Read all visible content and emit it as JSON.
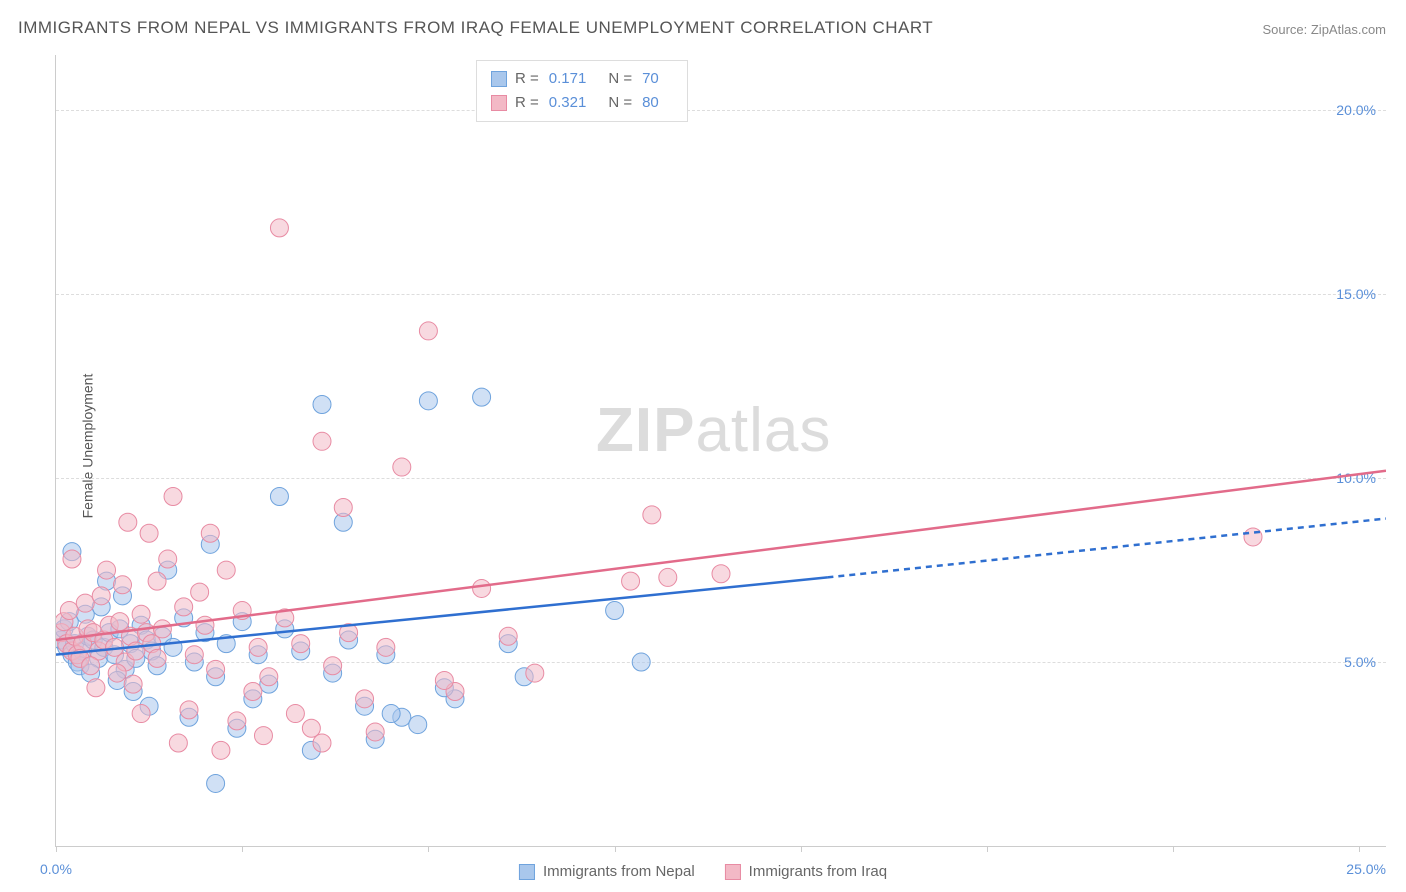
{
  "title": "IMMIGRANTS FROM NEPAL VS IMMIGRANTS FROM IRAQ FEMALE UNEMPLOYMENT CORRELATION CHART",
  "source_label": "Source: ZipAtlas.com",
  "y_axis_label": "Female Unemployment",
  "watermark": {
    "bold": "ZIP",
    "rest": "atlas"
  },
  "chart": {
    "type": "scatter",
    "background_color": "#ffffff",
    "grid_color": "#dddddd",
    "axis_color": "#cccccc",
    "tick_label_color": "#5a8fd8",
    "text_color": "#555555",
    "xlim": [
      0,
      25
    ],
    "ylim": [
      0,
      21.5
    ],
    "y_ticks": [
      {
        "value": 5,
        "label": "5.0%"
      },
      {
        "value": 10,
        "label": "10.0%"
      },
      {
        "value": 15,
        "label": "15.0%"
      },
      {
        "value": 20,
        "label": "20.0%"
      }
    ],
    "x_tick_positions": [
      0,
      3.5,
      7,
      10.5,
      14,
      17.5,
      21,
      24.5
    ],
    "x_origin_label": "0.0%",
    "x_max_label": "25.0%",
    "marker_radius": 9,
    "marker_opacity": 0.55,
    "series": [
      {
        "name": "Immigrants from Nepal",
        "color_fill": "#a9c7ec",
        "color_stroke": "#6fa3dd",
        "line_color": "#2f6fd0",
        "line_width": 2.5,
        "R": "0.171",
        "N": "70",
        "trend": {
          "x1": 0,
          "y1": 5.2,
          "x2": 14.5,
          "y2": 7.3,
          "x2_ext": 25,
          "y2_ext": 8.9,
          "dashed_after": 14.5
        },
        "points": [
          [
            0.1,
            5.6
          ],
          [
            0.2,
            5.4
          ],
          [
            0.15,
            5.9
          ],
          [
            0.3,
            5.2
          ],
          [
            0.35,
            5.5
          ],
          [
            0.4,
            5.0
          ],
          [
            0.25,
            6.1
          ],
          [
            0.5,
            5.3
          ],
          [
            0.6,
            5.7
          ],
          [
            0.45,
            4.9
          ],
          [
            0.7,
            5.6
          ],
          [
            0.8,
            5.1
          ],
          [
            0.55,
            6.3
          ],
          [
            0.9,
            5.4
          ],
          [
            0.65,
            4.7
          ],
          [
            1.0,
            5.8
          ],
          [
            0.3,
            8.0
          ],
          [
            1.1,
            5.2
          ],
          [
            1.2,
            5.9
          ],
          [
            0.85,
            6.5
          ],
          [
            1.3,
            4.8
          ],
          [
            1.4,
            5.5
          ],
          [
            0.95,
            7.2
          ],
          [
            1.5,
            5.1
          ],
          [
            1.6,
            6.0
          ],
          [
            1.15,
            4.5
          ],
          [
            1.7,
            5.6
          ],
          [
            1.8,
            5.3
          ],
          [
            1.25,
            6.8
          ],
          [
            1.9,
            4.9
          ],
          [
            2.0,
            5.7
          ],
          [
            1.45,
            4.2
          ],
          [
            2.2,
            5.4
          ],
          [
            2.4,
            6.2
          ],
          [
            1.75,
            3.8
          ],
          [
            2.6,
            5.0
          ],
          [
            2.8,
            5.8
          ],
          [
            2.1,
            7.5
          ],
          [
            3.0,
            4.6
          ],
          [
            3.2,
            5.5
          ],
          [
            2.5,
            3.5
          ],
          [
            3.5,
            6.1
          ],
          [
            3.8,
            5.2
          ],
          [
            2.9,
            8.2
          ],
          [
            4.0,
            4.4
          ],
          [
            4.3,
            5.9
          ],
          [
            3.4,
            3.2
          ],
          [
            4.6,
            5.3
          ],
          [
            5.0,
            12.0
          ],
          [
            3.7,
            4.0
          ],
          [
            5.2,
            4.7
          ],
          [
            5.5,
            5.6
          ],
          [
            4.2,
            9.5
          ],
          [
            5.8,
            3.8
          ],
          [
            6.2,
            5.2
          ],
          [
            4.8,
            2.6
          ],
          [
            6.5,
            3.5
          ],
          [
            7.0,
            12.1
          ],
          [
            5.4,
            8.8
          ],
          [
            7.5,
            4.0
          ],
          [
            8.0,
            12.2
          ],
          [
            6.0,
            2.9
          ],
          [
            8.5,
            5.5
          ],
          [
            7.3,
            4.3
          ],
          [
            3.0,
            1.7
          ],
          [
            10.5,
            6.4
          ],
          [
            6.8,
            3.3
          ],
          [
            11.0,
            5.0
          ],
          [
            6.3,
            3.6
          ],
          [
            8.8,
            4.6
          ]
        ]
      },
      {
        "name": "Immigrants from Iraq",
        "color_fill": "#f3b9c6",
        "color_stroke": "#e88ba3",
        "line_color": "#e26b8a",
        "line_width": 2.5,
        "R": "0.321",
        "N": "80",
        "trend": {
          "x1": 0,
          "y1": 5.6,
          "x2": 25,
          "y2": 10.2
        },
        "points": [
          [
            0.1,
            5.8
          ],
          [
            0.2,
            5.5
          ],
          [
            0.15,
            6.1
          ],
          [
            0.3,
            5.3
          ],
          [
            0.35,
            5.7
          ],
          [
            0.4,
            5.2
          ],
          [
            0.25,
            6.4
          ],
          [
            0.5,
            5.5
          ],
          [
            0.6,
            5.9
          ],
          [
            0.45,
            5.1
          ],
          [
            0.7,
            5.8
          ],
          [
            0.8,
            5.3
          ],
          [
            0.55,
            6.6
          ],
          [
            0.9,
            5.6
          ],
          [
            0.65,
            4.9
          ],
          [
            1.0,
            6.0
          ],
          [
            0.3,
            7.8
          ],
          [
            1.1,
            5.4
          ],
          [
            1.2,
            6.1
          ],
          [
            0.85,
            6.8
          ],
          [
            1.3,
            5.0
          ],
          [
            1.4,
            5.7
          ],
          [
            0.95,
            7.5
          ],
          [
            1.5,
            5.3
          ],
          [
            1.6,
            6.3
          ],
          [
            1.15,
            4.7
          ],
          [
            1.7,
            5.8
          ],
          [
            1.8,
            5.5
          ],
          [
            1.25,
            7.1
          ],
          [
            1.9,
            5.1
          ],
          [
            2.0,
            5.9
          ],
          [
            1.45,
            4.4
          ],
          [
            2.2,
            9.5
          ],
          [
            2.4,
            6.5
          ],
          [
            1.75,
            8.5
          ],
          [
            2.6,
            5.2
          ],
          [
            2.8,
            6.0
          ],
          [
            2.1,
            7.8
          ],
          [
            3.0,
            4.8
          ],
          [
            3.2,
            7.5
          ],
          [
            2.5,
            3.7
          ],
          [
            3.5,
            6.4
          ],
          [
            3.8,
            5.4
          ],
          [
            2.9,
            8.5
          ],
          [
            4.0,
            4.6
          ],
          [
            4.3,
            6.2
          ],
          [
            3.4,
            3.4
          ],
          [
            4.6,
            5.5
          ],
          [
            5.0,
            11.0
          ],
          [
            3.7,
            4.2
          ],
          [
            5.2,
            4.9
          ],
          [
            5.5,
            5.8
          ],
          [
            4.2,
            16.8
          ],
          [
            5.8,
            4.0
          ],
          [
            6.2,
            5.4
          ],
          [
            4.8,
            3.2
          ],
          [
            6.5,
            10.3
          ],
          [
            7.0,
            14.0
          ],
          [
            5.4,
            9.2
          ],
          [
            7.5,
            4.2
          ],
          [
            8.0,
            7.0
          ],
          [
            6.0,
            3.1
          ],
          [
            8.5,
            5.7
          ],
          [
            7.3,
            4.5
          ],
          [
            9.0,
            4.7
          ],
          [
            10.8,
            7.2
          ],
          [
            11.2,
            9.0
          ],
          [
            11.5,
            7.3
          ],
          [
            12.5,
            7.4
          ],
          [
            22.5,
            8.4
          ],
          [
            2.3,
            2.8
          ],
          [
            3.1,
            2.6
          ],
          [
            3.9,
            3.0
          ],
          [
            1.6,
            3.6
          ],
          [
            0.75,
            4.3
          ],
          [
            4.5,
            3.6
          ],
          [
            5.0,
            2.8
          ],
          [
            1.35,
            8.8
          ],
          [
            1.9,
            7.2
          ],
          [
            2.7,
            6.9
          ]
        ]
      }
    ]
  },
  "legend_bottom": [
    {
      "label": "Immigrants from Nepal",
      "fill": "#a9c7ec",
      "stroke": "#6fa3dd"
    },
    {
      "label": "Immigrants from Iraq",
      "fill": "#f3b9c6",
      "stroke": "#e88ba3"
    }
  ]
}
